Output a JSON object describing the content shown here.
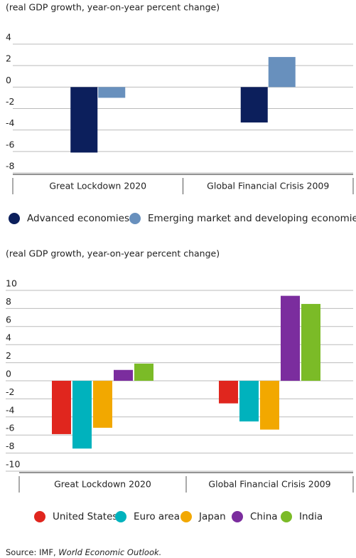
{
  "chart_data": [
    {
      "type": "bar",
      "title": "(real GDP growth, year-on-year percent change)",
      "categories": [
        "Great Lockdown 2020",
        "Global Financial Crisis 2009"
      ],
      "series": [
        {
          "name": "Advanced economies",
          "color": "#0c1f5c",
          "values": [
            -6.1,
            -3.3
          ]
        },
        {
          "name": "Emerging market and developing economies",
          "color": "#6890bd",
          "values": [
            -1.0,
            2.8
          ]
        }
      ],
      "ylim": [
        -8,
        4
      ],
      "yticks": [
        -8,
        -6,
        -4,
        -2,
        0,
        2,
        4
      ],
      "grid": true,
      "legend": "bottom"
    },
    {
      "type": "bar",
      "title": "(real GDP growth, year-on-year percent change)",
      "categories": [
        "Great Lockdown 2020",
        "Global Financial Crisis 2009"
      ],
      "series": [
        {
          "name": "United States",
          "color": "#e0261e",
          "values": [
            -5.9,
            -2.5
          ]
        },
        {
          "name": "Euro area",
          "color": "#00b2bd",
          "values": [
            -7.5,
            -4.5
          ]
        },
        {
          "name": "Japan",
          "color": "#f2a800",
          "values": [
            -5.2,
            -5.4
          ]
        },
        {
          "name": "China",
          "color": "#7b2d9e",
          "values": [
            1.2,
            9.4
          ]
        },
        {
          "name": "India",
          "color": "#7bbb27",
          "values": [
            1.9,
            8.5
          ]
        }
      ],
      "ylim": [
        -10,
        10
      ],
      "yticks": [
        -10,
        -8,
        -6,
        -4,
        -2,
        0,
        2,
        4,
        6,
        8,
        10
      ],
      "grid": true,
      "legend": "bottom"
    }
  ],
  "source": {
    "text": "Source: IMF, ",
    "publication": "World Economic Outlook."
  }
}
